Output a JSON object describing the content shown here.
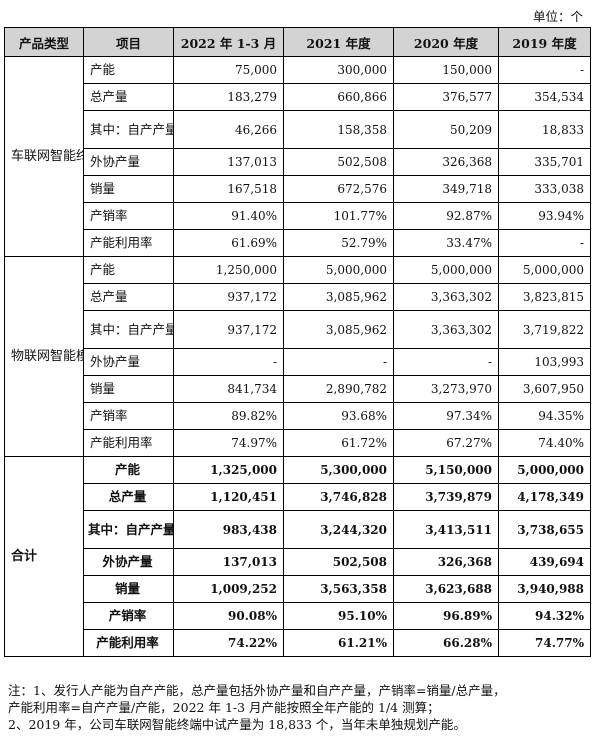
{
  "unit_label": "单位：个",
  "headers": [
    "产品类型",
    "项目",
    "2022 年 1-3 月",
    "2021 年度",
    "2020 年度",
    "2019 年度"
  ],
  "groups": [
    {
      "name": "车联网智能终端",
      "rows": [
        {
          "item": "产能",
          "values": [
            "75,000",
            "300,000",
            "150,000",
            "-"
          ]
        },
        {
          "item": "总产量",
          "values": [
            "183,279",
            "660,866",
            "376,577",
            "354,534"
          ]
        },
        {
          "item": "其中：自产产量",
          "values": [
            "46,266",
            "158,358",
            "50,209",
            "18,833"
          ]
        },
        {
          "item": "外协产量",
          "values": [
            "137,013",
            "502,508",
            "326,368",
            "335,701"
          ]
        },
        {
          "item": "销量",
          "values": [
            "167,518",
            "672,576",
            "349,718",
            "333,038"
          ]
        },
        {
          "item": "产销率",
          "values": [
            "91.40%",
            "101.77%",
            "92.87%",
            "93.94%"
          ]
        },
        {
          "item": "产能利用率",
          "values": [
            "61.69%",
            "52.79%",
            "33.47%",
            "-"
          ]
        }
      ]
    },
    {
      "name": "物联网智能模组",
      "rows": [
        {
          "item": "产能",
          "values": [
            "1,250,000",
            "5,000,000",
            "5,000,000",
            "5,000,000"
          ]
        },
        {
          "item": "总产量",
          "values": [
            "937,172",
            "3,085,962",
            "3,363,302",
            "3,823,815"
          ]
        },
        {
          "item": "其中：自产产量",
          "values": [
            "937,172",
            "3,085,962",
            "3,363,302",
            "3,719,822"
          ]
        },
        {
          "item": "外协产量",
          "values": [
            "-",
            "-",
            "-",
            "103,993"
          ]
        },
        {
          "item": "销量",
          "values": [
            "841,734",
            "2,890,782",
            "3,273,970",
            "3,607,950"
          ]
        },
        {
          "item": "产销率",
          "values": [
            "89.82%",
            "93.68%",
            "97.34%",
            "94.35%"
          ]
        },
        {
          "item": "产能利用率",
          "values": [
            "74.97%",
            "61.72%",
            "67.27%",
            "74.40%"
          ]
        }
      ]
    },
    {
      "name": "合计",
      "rows": [
        {
          "item": "产能",
          "values": [
            "1,325,000",
            "5,300,000",
            "5,150,000",
            "5,000,000"
          ]
        },
        {
          "item": "总产量",
          "values": [
            "1,120,451",
            "3,746,828",
            "3,739,879",
            "4,178,349"
          ]
        },
        {
          "item": "其中：自产产量",
          "values": [
            "983,438",
            "3,244,320",
            "3,413,511",
            "3,738,655"
          ]
        },
        {
          "item": "外协产量",
          "values": [
            "137,013",
            "502,508",
            "326,368",
            "439,694"
          ]
        },
        {
          "item": "销量",
          "values": [
            "1,009,252",
            "3,563,358",
            "3,623,688",
            "3,940,988"
          ]
        },
        {
          "item": "产销率",
          "values": [
            "90.08%",
            "95.10%",
            "96.89%",
            "94.32%"
          ]
        },
        {
          "item": "产能利用率",
          "values": [
            "74.22%",
            "61.21%",
            "66.28%",
            "74.77%"
          ]
        }
      ]
    }
  ],
  "notes": [
    "注：1、发行人产能为自产产能，总产量包括外协产量和自产产量，产销率=销量/总产量，",
    "产能利用率=自产产量/产能，2022 年 1-3 月产能按照全年产能的 1/4 测算；",
    "2、2019 年，公司车联网智能终端中试产量为 18,833 个，当年未单独规划产能。"
  ]
}
